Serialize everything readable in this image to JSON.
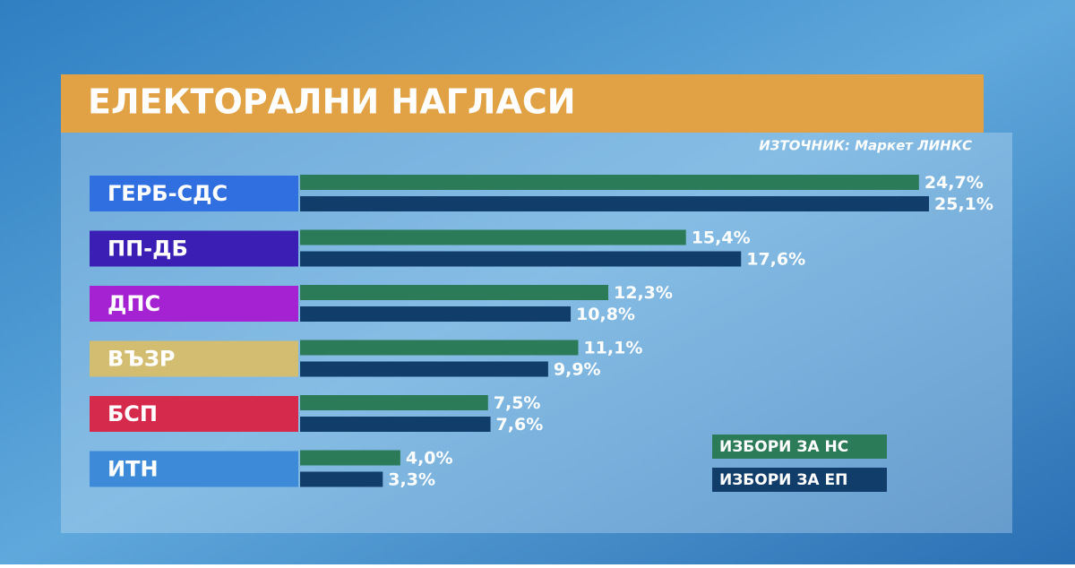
{
  "chart_data": {
    "type": "bar",
    "orientation": "horizontal",
    "title": "ЕЛЕКТОРАЛНИ НАГЛАСИ",
    "source": "ИЗТОЧНИК: Маркет ЛИНКС",
    "categories": [
      "ГЕРБ-СДС",
      "ПП-ДБ",
      "ДПС",
      "ВЪЗР",
      "БСП",
      "ИТН"
    ],
    "category_colors": [
      "#2f6fe0",
      "#3b1fb4",
      "#a422d2",
      "#d2bd70",
      "#d62a4c",
      "#3c8ad8"
    ],
    "series": [
      {
        "name": "ИЗБОРИ ЗА НС",
        "color": "#2b7a58",
        "values": [
          24.7,
          15.4,
          12.3,
          11.1,
          7.5,
          4.0
        ],
        "value_labels": [
          "24,7%",
          "15,4%",
          "12,3%",
          "11,1%",
          "7,5%",
          "4,0%"
        ]
      },
      {
        "name": "ИЗБОРИ ЗА ЕП",
        "color": "#113d6b",
        "values": [
          25.1,
          17.6,
          10.8,
          9.9,
          7.6,
          3.3
        ],
        "value_labels": [
          "25,1%",
          "17,6%",
          "10,8%",
          "9,9%",
          "7,6%",
          "3,3%"
        ]
      }
    ]
  }
}
